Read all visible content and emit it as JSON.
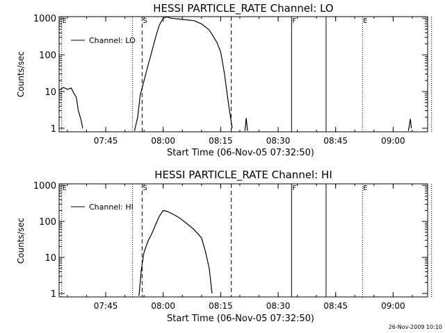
{
  "footer_timestamp": "26-Nov-2009 10:10",
  "chart_data": [
    {
      "type": "line",
      "title": "HESSI PARTICLE_RATE Channel: LO",
      "xlabel": "Start Time (06-Nov-05 07:32:50)",
      "ylabel": "Counts/sec",
      "y_scale": "log",
      "ylim": [
        0.8,
        1100
      ],
      "xlim": [
        "07:32:50",
        "09:09:00"
      ],
      "x_ticks": [
        "07:45",
        "08:00",
        "08:15",
        "08:30",
        "08:45",
        "09:00"
      ],
      "y_ticks": [
        "1",
        "10",
        "100",
        "1000"
      ],
      "legend": {
        "entries": [
          "Channel: LO"
        ],
        "position": "top-left"
      },
      "markers": [
        {
          "label": "E",
          "time": "07:33:30",
          "style": "dotted"
        },
        {
          "label": "",
          "time": "07:52:00",
          "style": "dotted"
        },
        {
          "label": "S",
          "time": "07:54:30",
          "style": "dashed"
        },
        {
          "label": "",
          "time": "08:17:45",
          "style": "dashed"
        },
        {
          "label": "F",
          "time": "08:33:30",
          "style": "solid"
        },
        {
          "label": "",
          "time": "08:42:30",
          "style": "solid"
        },
        {
          "label": "E",
          "time": "08:52:00",
          "style": "dotted"
        },
        {
          "label": "",
          "time": "09:10:00",
          "style": "dotted"
        }
      ],
      "series": [
        {
          "name": "Channel: LO",
          "segments": [
            [
              [
                "07:32:50",
                11
              ],
              [
                "07:34:00",
                13
              ],
              [
                "07:35:00",
                11.5
              ],
              [
                "07:36:00",
                12.5
              ],
              [
                "07:36:40",
                9
              ],
              [
                "07:37:20",
                7
              ],
              [
                "07:37:50",
                3
              ],
              [
                "07:38:30",
                1.8
              ],
              [
                "07:39:00",
                1
              ]
            ],
            [
              [
                "07:52:30",
                0.85
              ],
              [
                "07:53:20",
                2
              ],
              [
                "07:54:00",
                8
              ],
              [
                "07:55:00",
                20
              ],
              [
                "07:56:00",
                50
              ],
              [
                "07:57:00",
                120
              ],
              [
                "07:58:00",
                300
              ],
              [
                "07:59:00",
                650
              ],
              [
                "08:00:00",
                1000
              ],
              [
                "08:01:00",
                1080
              ],
              [
                "08:02:00",
                1000
              ],
              [
                "08:04:00",
                950
              ],
              [
                "08:06:00",
                900
              ],
              [
                "08:08:00",
                860
              ],
              [
                "08:10:00",
                700
              ],
              [
                "08:12:00",
                480
              ],
              [
                "08:14:00",
                220
              ],
              [
                "08:15:00",
                120
              ],
              [
                "08:16:00",
                30
              ],
              [
                "08:17:00",
                5
              ],
              [
                "08:18:00",
                1
              ]
            ],
            [
              [
                "08:21:20",
                0.85
              ],
              [
                "08:21:40",
                1.9
              ],
              [
                "08:22:00",
                0.85
              ]
            ],
            [
              [
                "09:04:00",
                0.85
              ],
              [
                "09:04:30",
                1.8
              ],
              [
                "09:04:45",
                1
              ]
            ]
          ]
        }
      ]
    },
    {
      "type": "line",
      "title": "HESSI PARTICLE_RATE Channel: HI",
      "xlabel": "Start Time (06-Nov-05 07:32:50)",
      "ylabel": "Counts/sec",
      "y_scale": "log",
      "ylim": [
        0.8,
        1100
      ],
      "xlim": [
        "07:32:50",
        "09:09:00"
      ],
      "x_ticks": [
        "07:45",
        "08:00",
        "08:15",
        "08:30",
        "08:45",
        "09:00"
      ],
      "y_ticks": [
        "1",
        "10",
        "100",
        "1000"
      ],
      "legend": {
        "entries": [
          "Channel: HI"
        ],
        "position": "top-left"
      },
      "markers": [
        {
          "label": "E",
          "time": "07:33:30",
          "style": "dotted"
        },
        {
          "label": "",
          "time": "07:52:00",
          "style": "dotted"
        },
        {
          "label": "S",
          "time": "07:54:30",
          "style": "dashed"
        },
        {
          "label": "",
          "time": "08:17:45",
          "style": "dashed"
        },
        {
          "label": "F",
          "time": "08:33:30",
          "style": "solid"
        },
        {
          "label": "",
          "time": "08:42:30",
          "style": "solid"
        },
        {
          "label": "E",
          "time": "08:52:00",
          "style": "dotted"
        },
        {
          "label": "",
          "time": "09:10:00",
          "style": "dotted"
        }
      ],
      "series": [
        {
          "name": "Channel: HI",
          "segments": [
            [
              [
                "07:53:40",
                0.85
              ],
              [
                "07:54:20",
                5
              ],
              [
                "07:55:00",
                14
              ],
              [
                "07:56:00",
                28
              ],
              [
                "07:57:00",
                45
              ],
              [
                "07:58:00",
                80
              ],
              [
                "07:59:00",
                140
              ],
              [
                "08:00:00",
                200
              ],
              [
                "08:01:00",
                190
              ],
              [
                "08:02:00",
                170
              ],
              [
                "08:04:00",
                130
              ],
              [
                "08:06:00",
                90
              ],
              [
                "08:08:00",
                60
              ],
              [
                "08:10:00",
                35
              ],
              [
                "08:11:00",
                15
              ],
              [
                "08:12:00",
                5
              ],
              [
                "08:12:45",
                1
              ]
            ]
          ]
        }
      ]
    }
  ]
}
